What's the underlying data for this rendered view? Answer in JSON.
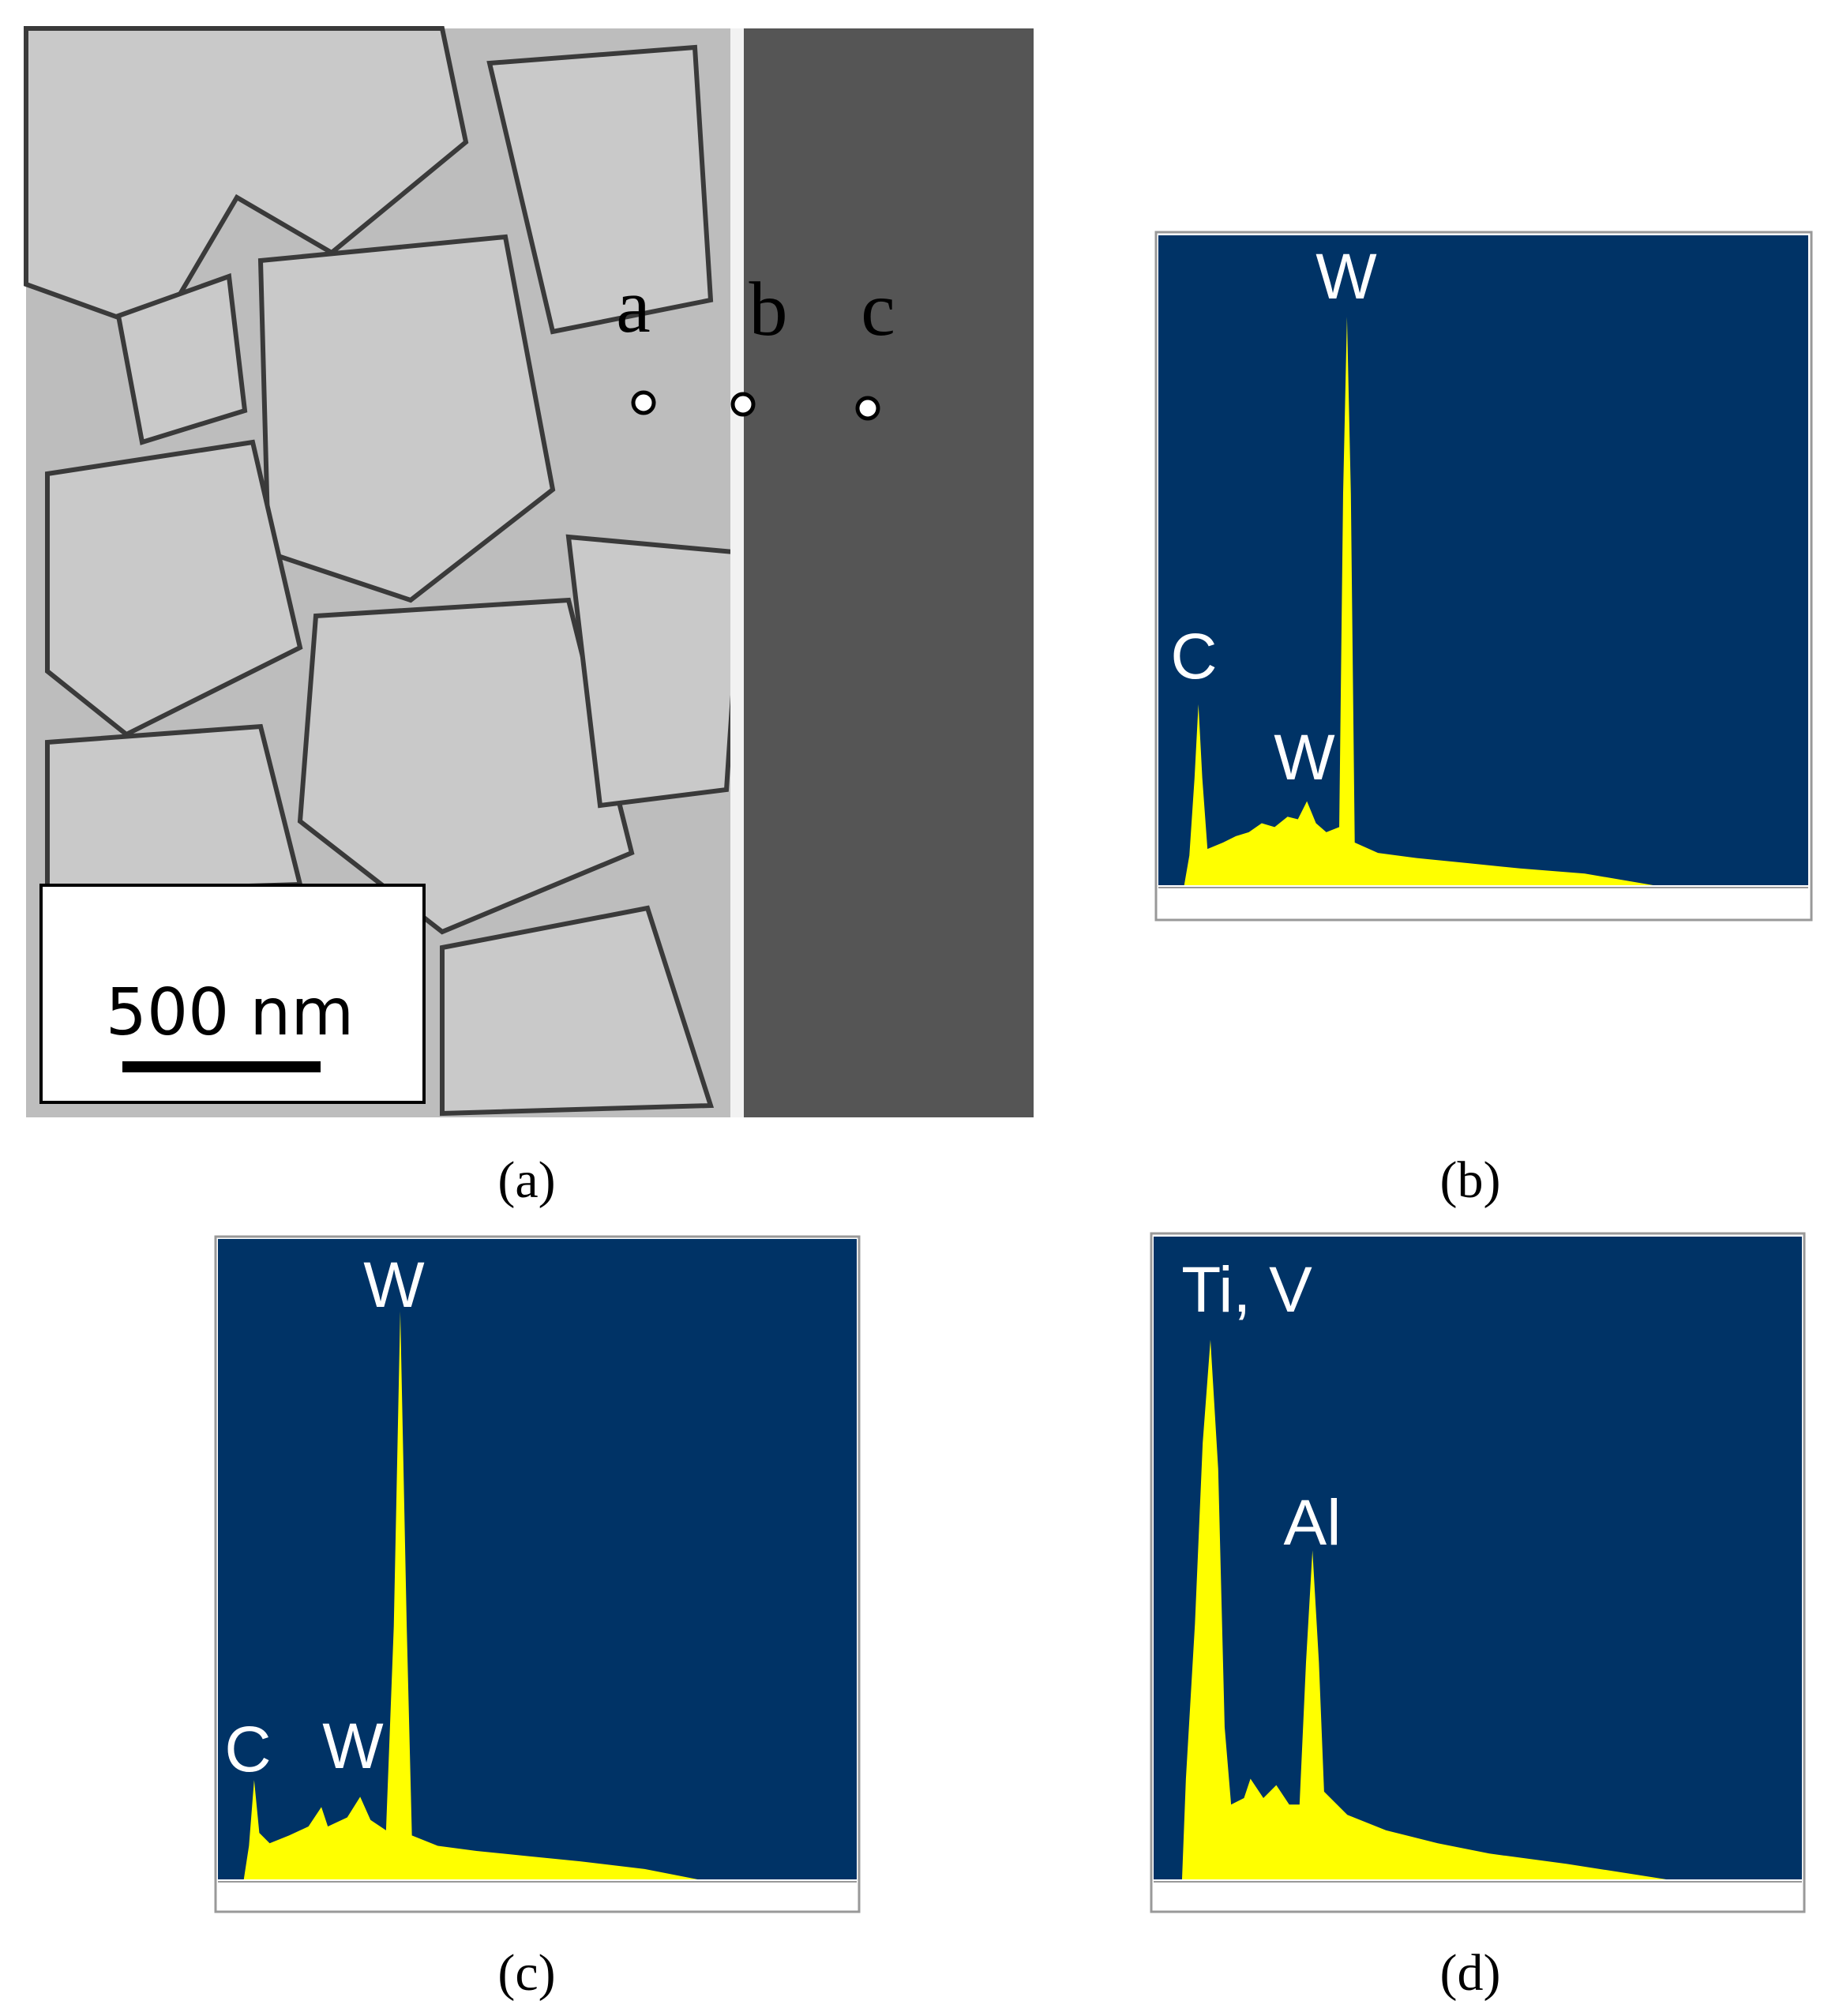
{
  "panel_a": {
    "point_labels": [
      "a",
      "b",
      "c"
    ],
    "scale_bar": "500 nm",
    "caption": "(a)"
  },
  "panel_b": {
    "peak_labels": [
      "W",
      "C",
      "W"
    ],
    "caption": "(b)"
  },
  "panel_c": {
    "peak_labels": [
      "W",
      "C",
      "W"
    ],
    "caption": "(c)"
  },
  "panel_d": {
    "peak_labels": [
      "Ti, V",
      "Al"
    ],
    "caption": "(d)"
  }
}
